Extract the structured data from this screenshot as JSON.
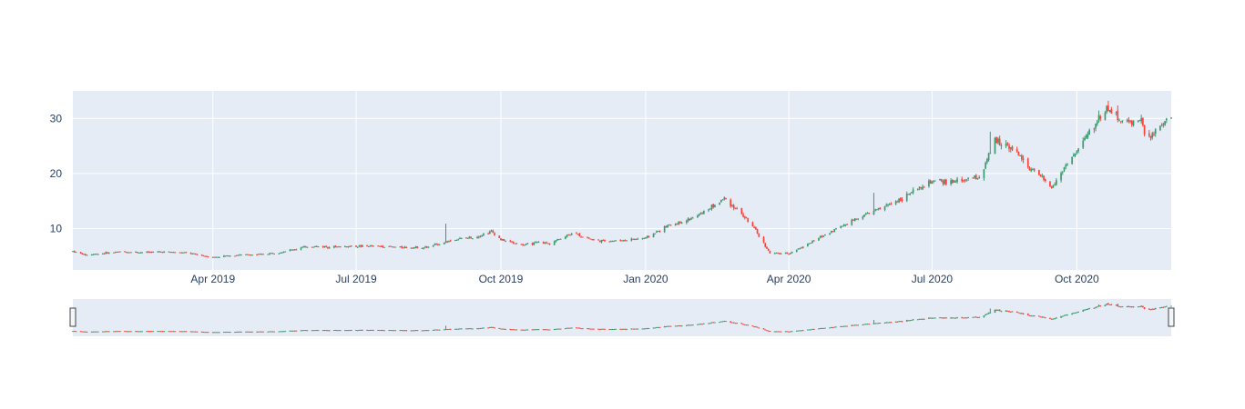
{
  "chart_data": {
    "type": "candlestick",
    "title": "",
    "xlabel": "",
    "ylabel": "",
    "x_range": [
      "2019-01-02",
      "2020-11-30"
    ],
    "y_range": [
      2.5,
      35
    ],
    "y_ticks": [
      10,
      20,
      30
    ],
    "x_ticks": [
      {
        "date": "2019-04-01",
        "label": "Apr 2019"
      },
      {
        "date": "2019-07-01",
        "label": "Jul 2019"
      },
      {
        "date": "2019-10-01",
        "label": "Oct 2019"
      },
      {
        "date": "2020-01-01",
        "label": "Jan 2020"
      },
      {
        "date": "2020-04-01",
        "label": "Apr 2020"
      },
      {
        "date": "2020-07-01",
        "label": "Jul 2020"
      },
      {
        "date": "2020-10-01",
        "label": "Oct 2020"
      }
    ],
    "grid": true,
    "rangeslider": true,
    "colors": {
      "increasing": "#3D9970",
      "decreasing": "#FF4136",
      "plot_background": "#E5ECF6",
      "grid": "#ffffff",
      "tick_text": "#2a3f5f"
    },
    "series": [
      {
        "close_path": [
          [
            "2019-01-02",
            5.9
          ],
          [
            "2019-01-10",
            5.2
          ],
          [
            "2019-01-20",
            5.5
          ],
          [
            "2019-02-01",
            5.8
          ],
          [
            "2019-02-15",
            5.7
          ],
          [
            "2019-03-01",
            5.8
          ],
          [
            "2019-03-15",
            5.6
          ],
          [
            "2019-04-01",
            4.8
          ],
          [
            "2019-04-15",
            5.2
          ],
          [
            "2019-05-01",
            5.3
          ],
          [
            "2019-05-15",
            5.8
          ],
          [
            "2019-06-01",
            6.8
          ],
          [
            "2019-06-15",
            6.7
          ],
          [
            "2019-07-01",
            6.8
          ],
          [
            "2019-07-15",
            6.8
          ],
          [
            "2019-08-01",
            6.6
          ],
          [
            "2019-08-15",
            6.6
          ],
          [
            "2019-08-22",
            7.2
          ],
          [
            "2019-09-01",
            8.0
          ],
          [
            "2019-09-15",
            8.5
          ],
          [
            "2019-09-25",
            9.5
          ],
          [
            "2019-10-01",
            8.0
          ],
          [
            "2019-10-15",
            7.0
          ],
          [
            "2019-10-25",
            7.5
          ],
          [
            "2019-11-01",
            7.3
          ],
          [
            "2019-11-15",
            9.2
          ],
          [
            "2019-12-01",
            7.8
          ],
          [
            "2019-12-15",
            7.8
          ],
          [
            "2020-01-01",
            8.3
          ],
          [
            "2020-01-15",
            10.5
          ],
          [
            "2020-02-01",
            12.0
          ],
          [
            "2020-02-15",
            14.5
          ],
          [
            "2020-02-20",
            15.5
          ],
          [
            "2020-03-01",
            13.0
          ],
          [
            "2020-03-10",
            10.0
          ],
          [
            "2020-03-20",
            5.5
          ],
          [
            "2020-04-01",
            5.5
          ],
          [
            "2020-04-15",
            7.5
          ],
          [
            "2020-05-01",
            10.0
          ],
          [
            "2020-05-15",
            12.0
          ],
          [
            "2020-06-01",
            14.0
          ],
          [
            "2020-06-15",
            16.0
          ],
          [
            "2020-07-01",
            18.5
          ],
          [
            "2020-07-15",
            18.5
          ],
          [
            "2020-08-01",
            19.5
          ],
          [
            "2020-08-10",
            26.0
          ],
          [
            "2020-08-20",
            25.0
          ],
          [
            "2020-09-01",
            21.0
          ],
          [
            "2020-09-15",
            17.5
          ],
          [
            "2020-09-25",
            22.0
          ],
          [
            "2020-10-01",
            24.0
          ],
          [
            "2020-10-10",
            28.0
          ],
          [
            "2020-10-20",
            32.0
          ],
          [
            "2020-11-01",
            29.0
          ],
          [
            "2020-11-10",
            30.0
          ],
          [
            "2020-11-15",
            26.0
          ],
          [
            "2020-11-30",
            30.5
          ]
        ],
        "spikes": [
          [
            "2019-08-27",
            10.9
          ],
          [
            "2020-05-25",
            16.5
          ],
          [
            "2020-08-07",
            27.6
          ],
          [
            "2020-10-21",
            33.2
          ]
        ]
      }
    ]
  }
}
